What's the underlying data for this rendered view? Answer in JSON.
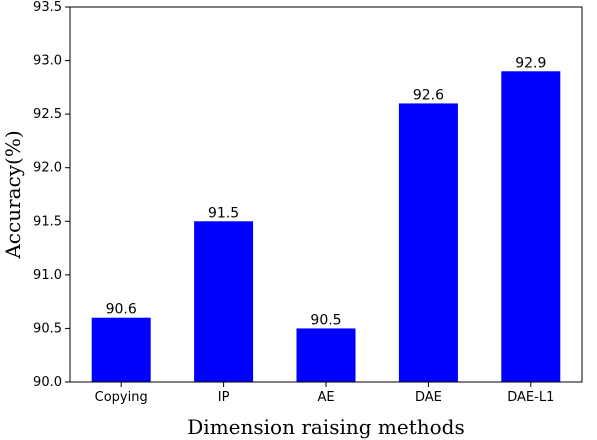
{
  "chart_data": {
    "type": "bar",
    "title": "",
    "xlabel": "Dimension raising methods",
    "ylabel": "Accuracy(%)",
    "categories": [
      "Copying",
      "IP",
      "AE",
      "DAE",
      "DAE-L1"
    ],
    "values": [
      90.6,
      91.5,
      90.5,
      92.6,
      92.9
    ],
    "data_labels": [
      "90.6",
      "91.5",
      "90.5",
      "92.6",
      "92.9"
    ],
    "ylim": [
      90.0,
      93.5
    ],
    "yticks": [
      "90.0",
      "90.5",
      "91.0",
      "91.5",
      "92.0",
      "92.5",
      "93.0",
      "93.5"
    ],
    "grid": false,
    "legend": "none",
    "bar_color": "#0000ff"
  }
}
